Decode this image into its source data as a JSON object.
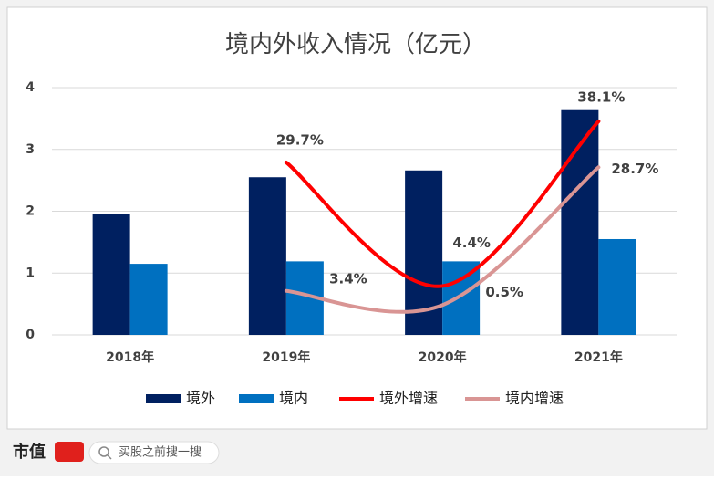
{
  "chart_data": {
    "type": "bar-line",
    "title": "境内外收入情况（亿元）",
    "categories": [
      "2018年",
      "2019年",
      "2020年",
      "2021年"
    ],
    "series": [
      {
        "name": "境外",
        "type": "bar",
        "color": "#002060",
        "values": [
          1.95,
          2.55,
          2.66,
          3.65
        ]
      },
      {
        "name": "境内",
        "type": "bar",
        "color": "#0070c0",
        "values": [
          1.15,
          1.19,
          1.19,
          1.55
        ]
      },
      {
        "name": "境外增速",
        "type": "line",
        "axis": "y2",
        "color": "#ff0000",
        "values": [
          null,
          29.7,
          4.4,
          38.1
        ],
        "value_labels": [
          null,
          "29.7%",
          "4.4%",
          "38.1%"
        ]
      },
      {
        "name": "境内增速",
        "type": "line",
        "axis": "y2",
        "color": "#d99594",
        "values": [
          null,
          3.4,
          0.5,
          28.7
        ],
        "value_labels": [
          null,
          "3.4%",
          "0.5%",
          "28.7%"
        ]
      }
    ],
    "ylim": [
      0,
      4
    ],
    "yticks": [
      0,
      1,
      2,
      3,
      4
    ],
    "y2lim": [
      -5.6,
      45
    ],
    "grid": true,
    "legend": "bottom"
  },
  "footer": {
    "brand": "市值",
    "search": "买股之前搜一搜"
  }
}
